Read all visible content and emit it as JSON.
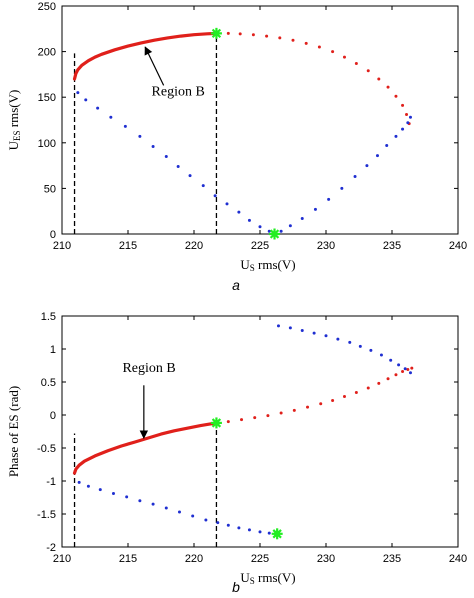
{
  "colors": {
    "red": "#e0201b",
    "blue": "#1f2fd1",
    "marker": "#22ee22",
    "axis": "#000000"
  },
  "chart_data": [
    {
      "panel": "a",
      "type": "scatter",
      "xlabel_main": "U",
      "xlabel_sub": "S",
      "xlabel_rest": " rms(V)",
      "ylabel_main": "U",
      "ylabel_sub": "ES",
      "ylabel_rest": " rms(V)",
      "xlim": [
        210,
        240
      ],
      "ylim": [
        0,
        250
      ],
      "xticks": [
        210,
        215,
        220,
        225,
        230,
        235,
        240
      ],
      "yticks": [
        0,
        50,
        100,
        150,
        200,
        250
      ],
      "xtick_labels": [
        "210",
        "215",
        "220",
        "225",
        "230",
        "235",
        "240"
      ],
      "ytick_labels": [
        "0",
        "50",
        "100",
        "150",
        "200",
        "250"
      ],
      "series": [
        {
          "color": "red",
          "style": "thick-line",
          "points": [
            [
              210.95,
              170
            ],
            [
              211.05,
              176
            ],
            [
              211.2,
              180
            ],
            [
              211.5,
              185
            ],
            [
              212,
              190
            ],
            [
              212.5,
              194
            ],
            [
              213,
              197
            ],
            [
              214,
              202
            ],
            [
              215,
              206
            ],
            [
              216,
              209.5
            ],
            [
              217,
              212.5
            ],
            [
              218,
              215
            ],
            [
              219,
              217
            ],
            [
              220,
              218.5
            ],
            [
              221,
              219.5
            ],
            [
              221.7,
              220
            ]
          ]
        },
        {
          "color": "red",
          "style": "dots",
          "points": [
            [
              222.6,
              220
            ],
            [
              223.5,
              219.5
            ],
            [
              224.5,
              218.5
            ],
            [
              225.5,
              217
            ],
            [
              226.5,
              215
            ],
            [
              227.5,
              212.5
            ],
            [
              228.5,
              209
            ],
            [
              229.5,
              205
            ],
            [
              230.5,
              200
            ],
            [
              231.4,
              194
            ],
            [
              232.3,
              187
            ],
            [
              233.2,
              179
            ],
            [
              234,
              170
            ],
            [
              234.7,
              161
            ],
            [
              235.3,
              151
            ],
            [
              235.8,
              141
            ],
            [
              236.1,
              131
            ],
            [
              236.3,
              121
            ]
          ]
        },
        {
          "color": "blue",
          "style": "dots",
          "points": [
            [
              211.2,
              155
            ],
            [
              211.8,
              147
            ],
            [
              212.7,
              138
            ],
            [
              213.7,
              128
            ],
            [
              214.8,
              118
            ],
            [
              215.9,
              107
            ],
            [
              216.9,
              96
            ],
            [
              217.9,
              85
            ],
            [
              218.8,
              74
            ],
            [
              219.7,
              64
            ],
            [
              220.7,
              53
            ],
            [
              221.6,
              42
            ],
            [
              222.5,
              33
            ],
            [
              223.4,
              24
            ],
            [
              224.2,
              15
            ],
            [
              225,
              8
            ],
            [
              225.7,
              3
            ],
            [
              226.6,
              3
            ],
            [
              227.3,
              9
            ],
            [
              228.2,
              17
            ],
            [
              229.2,
              27
            ],
            [
              230.2,
              38
            ],
            [
              231.2,
              50
            ],
            [
              232.2,
              63
            ],
            [
              233.1,
              75
            ],
            [
              233.9,
              86
            ],
            [
              234.6,
              97
            ],
            [
              235.3,
              107
            ],
            [
              235.8,
              115
            ],
            [
              236.2,
              122
            ],
            [
              236.4,
              128
            ]
          ]
        }
      ],
      "markers": [
        [
          221.7,
          220
        ],
        [
          226.1,
          0
        ]
      ],
      "vlines": [
        {
          "x": 210.95,
          "y_from": 0,
          "y_to": 198
        },
        {
          "x": 221.7,
          "y_from": 0,
          "y_to": 220
        }
      ],
      "annotation": {
        "text": "Region B",
        "label_x": 218.8,
        "label_y": 152,
        "arrow_from": [
          217.7,
          163
        ],
        "arrow_to": [
          216.3,
          205
        ]
      },
      "panel_label": "a"
    },
    {
      "panel": "b",
      "type": "scatter",
      "xlabel_main": "U",
      "xlabel_sub": "S",
      "xlabel_rest": " rms(V)",
      "ylabel": "Phase of ES (rad)",
      "xlim": [
        210,
        240
      ],
      "ylim": [
        -2,
        1.5
      ],
      "xticks": [
        210,
        215,
        220,
        225,
        230,
        235,
        240
      ],
      "yticks": [
        -2,
        -1.5,
        -1,
        -0.5,
        0,
        0.5,
        1,
        1.5
      ],
      "xtick_labels": [
        "210",
        "215",
        "220",
        "225",
        "230",
        "235",
        "240"
      ],
      "ytick_labels": [
        "-2",
        "-1.5",
        "-1",
        "-0.5",
        "0",
        "0.5",
        "1",
        "1.5"
      ],
      "series": [
        {
          "color": "red",
          "style": "thick-line",
          "points": [
            [
              210.95,
              -0.88
            ],
            [
              211.05,
              -0.82
            ],
            [
              211.3,
              -0.76
            ],
            [
              211.7,
              -0.7
            ],
            [
              212.5,
              -0.62
            ],
            [
              213.5,
              -0.54
            ],
            [
              214.5,
              -0.47
            ],
            [
              215.5,
              -0.41
            ],
            [
              216.5,
              -0.35
            ],
            [
              217.5,
              -0.29
            ],
            [
              218.5,
              -0.24
            ],
            [
              219.5,
              -0.2
            ],
            [
              220.5,
              -0.16
            ],
            [
              221.7,
              -0.12
            ]
          ]
        },
        {
          "color": "red",
          "style": "dots",
          "points": [
            [
              222.6,
              -0.1
            ],
            [
              223.6,
              -0.07
            ],
            [
              224.6,
              -0.04
            ],
            [
              225.6,
              -0.01
            ],
            [
              226.6,
              0.03
            ],
            [
              227.6,
              0.07
            ],
            [
              228.6,
              0.12
            ],
            [
              229.6,
              0.17
            ],
            [
              230.5,
              0.22
            ],
            [
              231.4,
              0.28
            ],
            [
              232.3,
              0.34
            ],
            [
              233.2,
              0.41
            ],
            [
              234,
              0.48
            ],
            [
              234.7,
              0.55
            ],
            [
              235.3,
              0.61
            ],
            [
              235.8,
              0.66
            ],
            [
              236.2,
              0.69
            ],
            [
              236.5,
              0.71
            ]
          ]
        },
        {
          "color": "blue",
          "style": "dots",
          "points": [
            [
              211.3,
              -1.02
            ],
            [
              212,
              -1.08
            ],
            [
              212.9,
              -1.13
            ],
            [
              213.9,
              -1.19
            ],
            [
              214.9,
              -1.24
            ],
            [
              215.9,
              -1.3
            ],
            [
              216.9,
              -1.35
            ],
            [
              217.9,
              -1.41
            ],
            [
              218.9,
              -1.47
            ],
            [
              219.9,
              -1.53
            ],
            [
              220.9,
              -1.59
            ],
            [
              221.8,
              -1.63
            ],
            [
              222.6,
              -1.67
            ],
            [
              223.4,
              -1.71
            ],
            [
              224.2,
              -1.74
            ],
            [
              225,
              -1.77
            ],
            [
              225.7,
              -1.79
            ]
          ]
        },
        {
          "color": "blue",
          "style": "dots",
          "points": [
            [
              226.4,
              1.35
            ],
            [
              227.3,
              1.32
            ],
            [
              228.2,
              1.28
            ],
            [
              229.1,
              1.24
            ],
            [
              230,
              1.2
            ],
            [
              230.9,
              1.15
            ],
            [
              231.8,
              1.1
            ],
            [
              232.6,
              1.04
            ],
            [
              233.4,
              0.98
            ],
            [
              234.2,
              0.91
            ],
            [
              234.9,
              0.83
            ],
            [
              235.5,
              0.76
            ],
            [
              236,
              0.7
            ],
            [
              236.4,
              0.64
            ]
          ]
        }
      ],
      "markers": [
        [
          221.7,
          -0.12
        ],
        [
          226.3,
          -1.8
        ]
      ],
      "vlines": [
        {
          "x": 210.95,
          "y_from": -2,
          "y_to": -0.28
        },
        {
          "x": 221.7,
          "y_from": -2,
          "y_to": -0.12
        }
      ],
      "annotation": {
        "text": "Region B",
        "label_x": 216.6,
        "label_y": 0.65,
        "arrow_from": [
          216.2,
          0.45
        ],
        "arrow_to": [
          216.2,
          -0.35
        ]
      },
      "panel_label": "b"
    }
  ]
}
